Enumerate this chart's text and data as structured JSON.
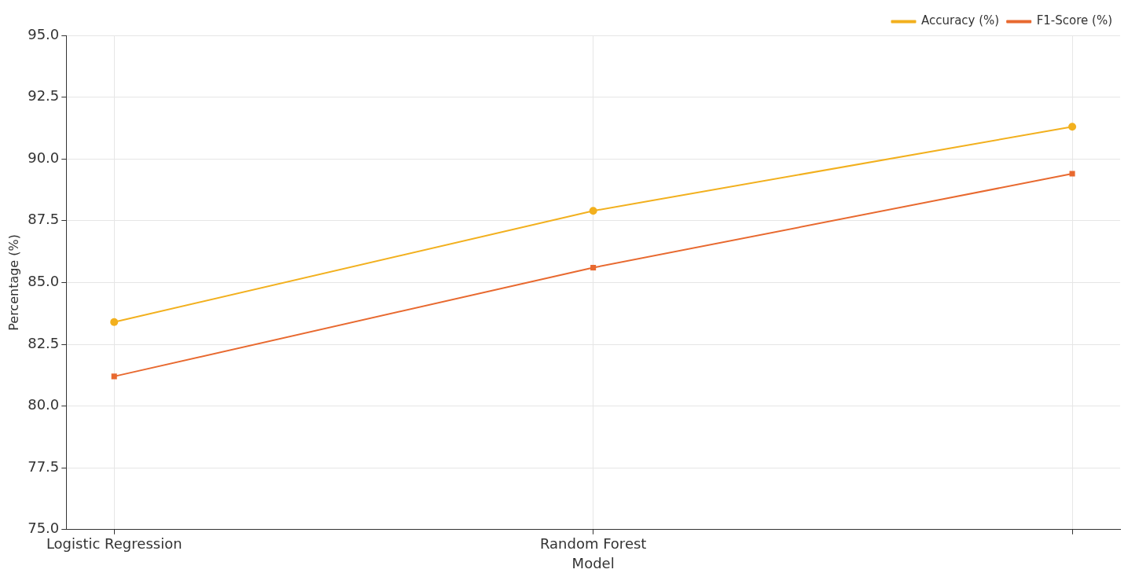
{
  "chart_data": {
    "type": "line",
    "xlabel": "Model",
    "ylabel": "Percentage (%)",
    "categories": [
      "Logistic Regression",
      "Random Forest",
      null
    ],
    "series": [
      {
        "name": "Accuracy (%)",
        "color": "#f2b01e",
        "marker": "circle",
        "values": [
          83.4,
          87.9,
          91.3
        ]
      },
      {
        "name": "F1-Score (%)",
        "color": "#e8692f",
        "marker": "square",
        "values": [
          81.2,
          85.6,
          89.4
        ]
      }
    ],
    "ylim": [
      75,
      95
    ],
    "yticks": [
      {
        "value": 75,
        "label": "75.0"
      },
      {
        "value": 77.5,
        "label": "77.5"
      },
      {
        "value": 80,
        "label": "80.0"
      },
      {
        "value": 82.5,
        "label": "82.5"
      },
      {
        "value": 85,
        "label": "85.0"
      },
      {
        "value": 87.5,
        "label": "87.5"
      },
      {
        "value": 90,
        "label": "90.0"
      },
      {
        "value": 92.5,
        "label": "92.5"
      },
      {
        "value": 95,
        "label": "95.0"
      }
    ],
    "grid": true,
    "legend": "top right",
    "line_style": "solid"
  }
}
